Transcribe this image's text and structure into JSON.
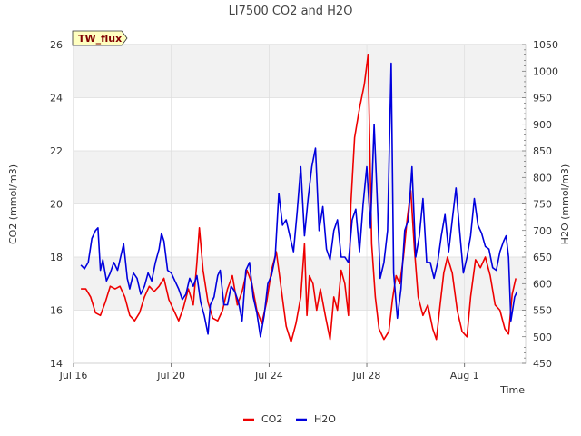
{
  "chart_data": {
    "type": "line",
    "title": "LI7500 CO2 and H2O",
    "badge": "TW_flux",
    "xlabel": "Time",
    "ylabel_left": "CO2 (mmol/m3)",
    "ylabel_right": "H2O (mmol/m3)",
    "x_unit": "days since Jul 16",
    "xlim": [
      0,
      18.5
    ],
    "ylim_left": [
      14,
      26
    ],
    "ylim_right": [
      450,
      1050
    ],
    "x_ticks": [
      {
        "value": 0,
        "label": "Jul 16"
      },
      {
        "value": 4,
        "label": "Jul 20"
      },
      {
        "value": 8,
        "label": "Jul 24"
      },
      {
        "value": 12,
        "label": "Jul 28"
      },
      {
        "value": 16,
        "label": "Aug 1"
      }
    ],
    "y_ticks_left": [
      14,
      16,
      18,
      20,
      22,
      24,
      26
    ],
    "y_ticks_right": [
      450,
      500,
      550,
      600,
      650,
      700,
      750,
      800,
      850,
      900,
      950,
      1000,
      1050
    ],
    "shaded_bands_left": [
      [
        16,
        18
      ],
      [
        20,
        22
      ],
      [
        24,
        26
      ]
    ],
    "legend_position": "bottom-center",
    "series": [
      {
        "name": "CO2",
        "axis": "left",
        "color": "#ee0000",
        "points": [
          [
            0.3,
            16.8
          ],
          [
            0.5,
            16.8
          ],
          [
            0.7,
            16.5
          ],
          [
            0.9,
            15.9
          ],
          [
            1.1,
            15.8
          ],
          [
            1.3,
            16.3
          ],
          [
            1.5,
            16.9
          ],
          [
            1.7,
            16.8
          ],
          [
            1.9,
            16.9
          ],
          [
            2.1,
            16.5
          ],
          [
            2.3,
            15.8
          ],
          [
            2.5,
            15.6
          ],
          [
            2.7,
            15.9
          ],
          [
            2.9,
            16.5
          ],
          [
            3.1,
            16.9
          ],
          [
            3.3,
            16.7
          ],
          [
            3.5,
            16.9
          ],
          [
            3.7,
            17.2
          ],
          [
            3.9,
            16.4
          ],
          [
            4.1,
            16.0
          ],
          [
            4.3,
            15.6
          ],
          [
            4.5,
            16.1
          ],
          [
            4.7,
            16.8
          ],
          [
            4.9,
            16.2
          ],
          [
            5.05,
            17.8
          ],
          [
            5.15,
            19.1
          ],
          [
            5.3,
            17.5
          ],
          [
            5.5,
            16.3
          ],
          [
            5.7,
            15.7
          ],
          [
            5.9,
            15.6
          ],
          [
            6.1,
            16.0
          ],
          [
            6.3,
            16.8
          ],
          [
            6.5,
            17.3
          ],
          [
            6.7,
            16.2
          ],
          [
            6.9,
            16.7
          ],
          [
            7.1,
            17.5
          ],
          [
            7.3,
            17.0
          ],
          [
            7.5,
            16.0
          ],
          [
            7.7,
            15.5
          ],
          [
            7.9,
            16.3
          ],
          [
            8.1,
            17.5
          ],
          [
            8.3,
            18.2
          ],
          [
            8.5,
            16.8
          ],
          [
            8.7,
            15.4
          ],
          [
            8.9,
            14.8
          ],
          [
            9.1,
            15.5
          ],
          [
            9.3,
            16.5
          ],
          [
            9.45,
            18.5
          ],
          [
            9.55,
            15.8
          ],
          [
            9.65,
            17.3
          ],
          [
            9.8,
            17.0
          ],
          [
            9.95,
            16.0
          ],
          [
            10.1,
            16.8
          ],
          [
            10.3,
            15.8
          ],
          [
            10.5,
            14.9
          ],
          [
            10.65,
            16.5
          ],
          [
            10.8,
            16.0
          ],
          [
            10.95,
            17.5
          ],
          [
            11.1,
            17.0
          ],
          [
            11.25,
            15.8
          ],
          [
            11.35,
            20.0
          ],
          [
            11.5,
            22.5
          ],
          [
            11.7,
            23.6
          ],
          [
            11.9,
            24.5
          ],
          [
            12.05,
            25.6
          ],
          [
            12.2,
            18.5
          ],
          [
            12.35,
            16.5
          ],
          [
            12.5,
            15.3
          ],
          [
            12.7,
            14.9
          ],
          [
            12.9,
            15.2
          ],
          [
            13.05,
            16.4
          ],
          [
            13.2,
            17.3
          ],
          [
            13.35,
            17.0
          ],
          [
            13.5,
            18.0
          ],
          [
            13.65,
            19.4
          ],
          [
            13.8,
            20.5
          ],
          [
            13.95,
            18.3
          ],
          [
            14.1,
            16.5
          ],
          [
            14.3,
            15.8
          ],
          [
            14.5,
            16.2
          ],
          [
            14.7,
            15.3
          ],
          [
            14.85,
            14.9
          ],
          [
            15.0,
            16.2
          ],
          [
            15.15,
            17.4
          ],
          [
            15.3,
            18.0
          ],
          [
            15.5,
            17.4
          ],
          [
            15.7,
            16.0
          ],
          [
            15.9,
            15.2
          ],
          [
            16.1,
            15.0
          ],
          [
            16.25,
            16.5
          ],
          [
            16.45,
            17.9
          ],
          [
            16.65,
            17.6
          ],
          [
            16.85,
            18.0
          ],
          [
            17.05,
            17.3
          ],
          [
            17.25,
            16.2
          ],
          [
            17.45,
            16.0
          ],
          [
            17.65,
            15.3
          ],
          [
            17.8,
            15.1
          ],
          [
            17.95,
            16.6
          ],
          [
            18.1,
            17.2
          ]
        ]
      },
      {
        "name": "H2O",
        "axis": "right",
        "color": "#0000dd",
        "points": [
          [
            0.3,
            635
          ],
          [
            0.45,
            628
          ],
          [
            0.6,
            640
          ],
          [
            0.75,
            685
          ],
          [
            0.9,
            700
          ],
          [
            1.0,
            705
          ],
          [
            1.1,
            625
          ],
          [
            1.2,
            645
          ],
          [
            1.35,
            605
          ],
          [
            1.5,
            620
          ],
          [
            1.65,
            640
          ],
          [
            1.8,
            625
          ],
          [
            1.95,
            655
          ],
          [
            2.05,
            675
          ],
          [
            2.2,
            610
          ],
          [
            2.3,
            590
          ],
          [
            2.45,
            620
          ],
          [
            2.6,
            610
          ],
          [
            2.75,
            580
          ],
          [
            2.9,
            595
          ],
          [
            3.05,
            620
          ],
          [
            3.2,
            605
          ],
          [
            3.35,
            640
          ],
          [
            3.5,
            665
          ],
          [
            3.6,
            695
          ],
          [
            3.7,
            680
          ],
          [
            3.85,
            625
          ],
          [
            4.0,
            620
          ],
          [
            4.15,
            605
          ],
          [
            4.3,
            590
          ],
          [
            4.45,
            570
          ],
          [
            4.6,
            580
          ],
          [
            4.75,
            610
          ],
          [
            4.9,
            595
          ],
          [
            5.05,
            615
          ],
          [
            5.2,
            565
          ],
          [
            5.35,
            540
          ],
          [
            5.5,
            505
          ],
          [
            5.6,
            560
          ],
          [
            5.75,
            575
          ],
          [
            5.9,
            615
          ],
          [
            6.0,
            625
          ],
          [
            6.15,
            560
          ],
          [
            6.3,
            560
          ],
          [
            6.45,
            595
          ],
          [
            6.6,
            585
          ],
          [
            6.75,
            565
          ],
          [
            6.9,
            530
          ],
          [
            7.05,
            625
          ],
          [
            7.2,
            640
          ],
          [
            7.35,
            575
          ],
          [
            7.5,
            545
          ],
          [
            7.65,
            500
          ],
          [
            7.8,
            540
          ],
          [
            7.95,
            600
          ],
          [
            8.1,
            615
          ],
          [
            8.25,
            650
          ],
          [
            8.4,
            770
          ],
          [
            8.55,
            710
          ],
          [
            8.7,
            720
          ],
          [
            8.85,
            690
          ],
          [
            9.0,
            660
          ],
          [
            9.15,
            735
          ],
          [
            9.3,
            820
          ],
          [
            9.45,
            690
          ],
          [
            9.6,
            760
          ],
          [
            9.75,
            820
          ],
          [
            9.9,
            855
          ],
          [
            10.05,
            700
          ],
          [
            10.2,
            745
          ],
          [
            10.35,
            665
          ],
          [
            10.5,
            645
          ],
          [
            10.65,
            700
          ],
          [
            10.8,
            720
          ],
          [
            10.95,
            650
          ],
          [
            11.1,
            650
          ],
          [
            11.25,
            640
          ],
          [
            11.4,
            720
          ],
          [
            11.55,
            740
          ],
          [
            11.7,
            660
          ],
          [
            11.85,
            750
          ],
          [
            12.0,
            820
          ],
          [
            12.15,
            705
          ],
          [
            12.3,
            900
          ],
          [
            12.45,
            735
          ],
          [
            12.55,
            610
          ],
          [
            12.7,
            640
          ],
          [
            12.85,
            700
          ],
          [
            13.0,
            1015
          ],
          [
            13.1,
            620
          ],
          [
            13.25,
            535
          ],
          [
            13.4,
            590
          ],
          [
            13.55,
            700
          ],
          [
            13.7,
            720
          ],
          [
            13.85,
            820
          ],
          [
            14.0,
            650
          ],
          [
            14.15,
            690
          ],
          [
            14.3,
            760
          ],
          [
            14.45,
            640
          ],
          [
            14.6,
            640
          ],
          [
            14.75,
            610
          ],
          [
            14.9,
            640
          ],
          [
            15.05,
            690
          ],
          [
            15.2,
            730
          ],
          [
            15.35,
            660
          ],
          [
            15.5,
            720
          ],
          [
            15.65,
            780
          ],
          [
            15.8,
            700
          ],
          [
            15.95,
            620
          ],
          [
            16.1,
            650
          ],
          [
            16.25,
            690
          ],
          [
            16.4,
            760
          ],
          [
            16.55,
            710
          ],
          [
            16.7,
            695
          ],
          [
            16.85,
            670
          ],
          [
            17.0,
            665
          ],
          [
            17.15,
            630
          ],
          [
            17.3,
            625
          ],
          [
            17.45,
            660
          ],
          [
            17.6,
            680
          ],
          [
            17.7,
            690
          ],
          [
            17.8,
            650
          ],
          [
            17.9,
            530
          ],
          [
            18.05,
            575
          ],
          [
            18.15,
            585
          ]
        ]
      }
    ]
  }
}
